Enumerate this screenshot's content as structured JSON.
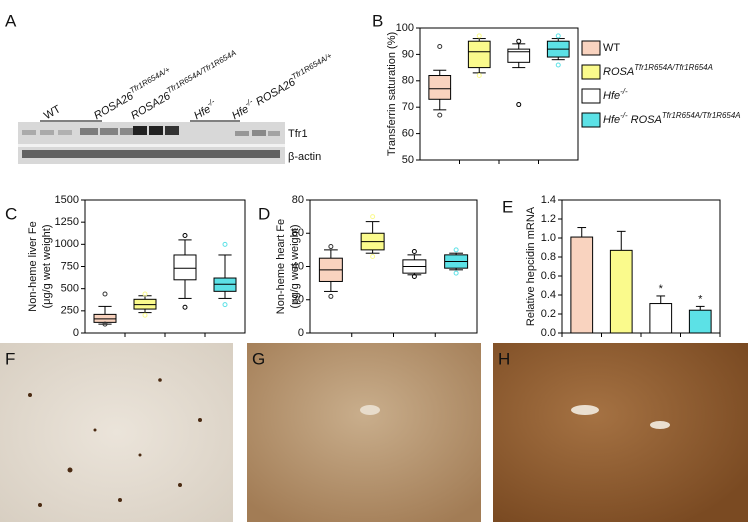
{
  "panel_labels": [
    "A",
    "B",
    "C",
    "D",
    "E",
    "F",
    "G",
    "H"
  ],
  "blot": {
    "lanes": [
      [
        {
          "t": "WT"
        }
      ],
      [
        {
          "t": "ROSA26",
          "i": true
        },
        {
          "t": "Tfr1R654A/+",
          "sup": true,
          "i": true
        }
      ],
      [
        {
          "t": "ROSA26",
          "i": true
        },
        {
          "t": "Tfr1R654A/Tfr1R654A",
          "sup": true,
          "i": true
        }
      ],
      [
        {
          "t": "Hfe",
          "i": true
        },
        {
          "t": "-/-",
          "sup": true,
          "i": true
        }
      ],
      [
        {
          "t": "Hfe",
          "i": true
        },
        {
          "t": "-/-",
          "sup": true,
          "i": true
        },
        {
          "t": " ROSA26",
          "i": true
        },
        {
          "t": "Tfr1R654A/+",
          "sup": true,
          "i": true
        }
      ]
    ],
    "bands": [
      "Tfr1",
      "β-actin"
    ]
  },
  "chart_data": [
    {
      "type": "box",
      "ylim": [
        50,
        100
      ],
      "yticks": [
        50,
        60,
        70,
        80,
        90,
        100
      ],
      "y_label": [
        "Transferrin saturation (%)"
      ],
      "legend": "right",
      "series": [
        {
          "name": [
            {
              "t": "WT"
            }
          ],
          "color": "#f9d3bf",
          "whisker_low": 69,
          "q1": 73,
          "median": 77,
          "q3": 82,
          "whisker_high": 84,
          "outliers": [
            93,
            67
          ]
        },
        {
          "name": [
            {
              "t": "ROSA",
              "i": true
            },
            {
              "t": "Tfr1R654A/Tfr1R654A",
              "sup": true,
              "i": true
            }
          ],
          "color": "#fafa8c",
          "whisker_low": 83,
          "q1": 85,
          "median": 91,
          "q3": 95,
          "whisker_high": 96,
          "outliers": [
            97,
            82
          ]
        },
        {
          "name": [
            {
              "t": "Hfe",
              "i": true
            },
            {
              "t": "-/-",
              "sup": true,
              "i": true
            }
          ],
          "color": "#ffffff",
          "whisker_low": 85,
          "q1": 87,
          "median": 91,
          "q3": 92,
          "whisker_high": 94,
          "outliers": [
            95,
            71
          ]
        },
        {
          "name": [
            {
              "t": "Hfe",
              "i": true
            },
            {
              "t": "-/-",
              "sup": true,
              "i": true
            },
            {
              "t": " ROSA",
              "i": true
            },
            {
              "t": "Tfr1R654A/Tfr1R654A",
              "sup": true,
              "i": true
            }
          ],
          "color": "#5ce1e6",
          "whisker_low": 88,
          "q1": 89,
          "median": 92,
          "q3": 95,
          "whisker_high": 96,
          "outliers": [
            97,
            86
          ]
        }
      ]
    },
    {
      "type": "box",
      "ylim": [
        0,
        1500
      ],
      "yticks": [
        0,
        250,
        500,
        750,
        1000,
        1250,
        1500
      ],
      "y_label": [
        "Non-heme liver Fe",
        "(μg/g wet weight)"
      ],
      "series": [
        {
          "color": "#f9d3bf",
          "whisker_low": 100,
          "q1": 120,
          "median": 160,
          "q3": 210,
          "whisker_high": 300,
          "outliers": [
            440,
            100
          ]
        },
        {
          "color": "#fafa8c",
          "whisker_low": 230,
          "q1": 270,
          "median": 320,
          "q3": 380,
          "whisker_high": 420,
          "outliers": [
            440,
            200
          ]
        },
        {
          "color": "#ffffff",
          "whisker_low": 390,
          "q1": 600,
          "median": 730,
          "q3": 880,
          "whisker_high": 1050,
          "outliers": [
            1100,
            290
          ]
        },
        {
          "color": "#5ce1e6",
          "whisker_low": 390,
          "q1": 470,
          "median": 550,
          "q3": 620,
          "whisker_high": 880,
          "outliers": [
            1000,
            320
          ]
        }
      ]
    },
    {
      "type": "box",
      "ylim": [
        0,
        80
      ],
      "yticks": [
        0,
        20,
        40,
        60,
        80
      ],
      "y_label": [
        "Non-heme heart Fe",
        "(μg/g wet weight)"
      ],
      "series": [
        {
          "color": "#f9d3bf",
          "whisker_low": 25,
          "q1": 31,
          "median": 38,
          "q3": 45,
          "whisker_high": 50,
          "outliers": [
            52,
            22
          ]
        },
        {
          "color": "#fafa8c",
          "whisker_low": 48,
          "q1": 50,
          "median": 55,
          "q3": 60,
          "whisker_high": 67,
          "outliers": [
            70,
            46
          ]
        },
        {
          "color": "#ffffff",
          "whisker_low": 35,
          "q1": 36,
          "median": 40,
          "q3": 44,
          "whisker_high": 47,
          "outliers": [
            49,
            34
          ]
        },
        {
          "color": "#5ce1e6",
          "whisker_low": 38,
          "q1": 39,
          "median": 43,
          "q3": 47,
          "whisker_high": 48,
          "outliers": [
            50,
            36
          ]
        }
      ]
    },
    {
      "type": "bar",
      "ylim": [
        0,
        1.4
      ],
      "yticks": [
        {
          "value": 0,
          "label": "0.0"
        },
        0.2,
        0.4,
        0.6,
        0.8,
        {
          "value": 1,
          "label": "1.0"
        },
        1.2,
        1.4
      ],
      "y_label": [
        "Relative hepcidin mRNA"
      ],
      "values": [
        1.01,
        0.87,
        0.31,
        0.24
      ],
      "errors": [
        0.1,
        0.2,
        0.08,
        0.04
      ],
      "colors": [
        "#f9d3bf",
        "#fafa8c",
        "#ffffff",
        "#5ce1e6"
      ],
      "annotations": [
        null,
        null,
        "*",
        "*"
      ]
    }
  ]
}
